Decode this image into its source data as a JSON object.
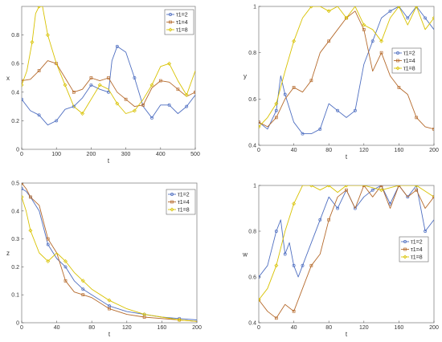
{
  "colors": {
    "blue": "#4F6FC1",
    "orange": "#B56A2C",
    "yellow": "#D8C200"
  },
  "chart_data": [
    {
      "type": "line",
      "xlabel": "t",
      "ylabel": "x",
      "xlim": [
        0,
        500
      ],
      "ylim": [
        0,
        1
      ],
      "xticks": [
        0,
        100,
        200,
        300,
        400,
        500
      ],
      "yticks": [
        0,
        0.2,
        0.4,
        0.6,
        0.8
      ],
      "xtick_labels": [
        "0",
        "100",
        "200",
        "300",
        "400",
        "500"
      ],
      "ytick_labels": [
        "0",
        "0.2",
        "0.4",
        "0.6",
        "0.8"
      ],
      "legend_position": "top-right",
      "grid": false,
      "series": [
        {
          "name": "τ1=2",
          "color": "#4F6FC1",
          "x": [
            0,
            25,
            50,
            75,
            100,
            125,
            150,
            175,
            200,
            225,
            250,
            260,
            275,
            300,
            325,
            350,
            375,
            400,
            425,
            450,
            475,
            500
          ],
          "y": [
            0.35,
            0.27,
            0.24,
            0.17,
            0.2,
            0.28,
            0.3,
            0.36,
            0.45,
            0.42,
            0.4,
            0.62,
            0.72,
            0.68,
            0.5,
            0.3,
            0.22,
            0.31,
            0.31,
            0.25,
            0.3,
            0.38
          ]
        },
        {
          "name": "τ1=4",
          "color": "#B56A2C",
          "x": [
            0,
            25,
            50,
            75,
            100,
            125,
            150,
            175,
            200,
            225,
            250,
            275,
            300,
            325,
            350,
            375,
            400,
            425,
            450,
            475,
            500
          ],
          "y": [
            0.48,
            0.49,
            0.55,
            0.62,
            0.6,
            0.5,
            0.4,
            0.42,
            0.5,
            0.48,
            0.5,
            0.4,
            0.35,
            0.3,
            0.31,
            0.43,
            0.48,
            0.47,
            0.42,
            0.37,
            0.4
          ]
        },
        {
          "name": "τ1=8",
          "color": "#D8C200",
          "x": [
            0,
            15,
            30,
            40,
            50,
            60,
            75,
            100,
            125,
            150,
            175,
            200,
            225,
            250,
            275,
            300,
            325,
            350,
            375,
            400,
            425,
            450,
            475,
            500
          ],
          "y": [
            0.45,
            0.55,
            0.75,
            0.95,
            1.0,
            1.0,
            0.8,
            0.6,
            0.45,
            0.3,
            0.25,
            0.35,
            0.45,
            0.42,
            0.32,
            0.25,
            0.27,
            0.35,
            0.45,
            0.58,
            0.6,
            0.48,
            0.38,
            0.55
          ]
        }
      ]
    },
    {
      "type": "line",
      "xlabel": "t",
      "ylabel": "y",
      "xlim": [
        0,
        200
      ],
      "ylim": [
        0.4,
        1
      ],
      "xticks": [
        0,
        40,
        80,
        120,
        160,
        200
      ],
      "yticks": [
        0.4,
        0.6,
        0.8,
        1
      ],
      "xtick_labels": [
        "0",
        "40",
        "80",
        "120",
        "160",
        "200"
      ],
      "ytick_labels": [
        "0.4",
        "0.6",
        "0.8",
        "1"
      ],
      "legend_position": "right",
      "grid": false,
      "series": [
        {
          "name": "τ1=2",
          "color": "#4F6FC1",
          "x": [
            0,
            10,
            20,
            25,
            30,
            40,
            50,
            60,
            70,
            80,
            90,
            100,
            110,
            120,
            130,
            140,
            150,
            160,
            170,
            180,
            190,
            200
          ],
          "y": [
            0.5,
            0.47,
            0.55,
            0.7,
            0.62,
            0.5,
            0.45,
            0.45,
            0.47,
            0.58,
            0.55,
            0.52,
            0.55,
            0.75,
            0.85,
            0.95,
            0.98,
            1.0,
            0.95,
            1.0,
            0.95,
            0.9
          ]
        },
        {
          "name": "τ1=4",
          "color": "#B56A2C",
          "x": [
            0,
            10,
            20,
            30,
            40,
            50,
            60,
            70,
            80,
            90,
            100,
            110,
            120,
            130,
            140,
            150,
            160,
            170,
            180,
            190,
            200
          ],
          "y": [
            0.5,
            0.48,
            0.52,
            0.6,
            0.65,
            0.63,
            0.68,
            0.8,
            0.85,
            0.9,
            0.95,
            0.98,
            0.9,
            0.72,
            0.8,
            0.7,
            0.65,
            0.62,
            0.52,
            0.48,
            0.47
          ]
        },
        {
          "name": "τ1=8",
          "color": "#D8C200",
          "x": [
            0,
            10,
            20,
            30,
            40,
            50,
            60,
            70,
            80,
            90,
            100,
            110,
            120,
            130,
            140,
            150,
            160,
            170,
            180,
            190,
            200
          ],
          "y": [
            0.48,
            0.52,
            0.58,
            0.72,
            0.85,
            0.95,
            1.0,
            1.0,
            0.98,
            1.0,
            0.95,
            1.0,
            0.92,
            0.9,
            0.85,
            0.95,
            1.0,
            0.92,
            1.0,
            0.9,
            0.95
          ]
        }
      ]
    },
    {
      "type": "line",
      "xlabel": "t",
      "ylabel": "z",
      "xlim": [
        0,
        200
      ],
      "ylim": [
        0,
        0.5
      ],
      "xticks": [
        0,
        40,
        80,
        120,
        160,
        200
      ],
      "yticks": [
        0,
        0.1,
        0.2,
        0.3,
        0.4,
        0.5
      ],
      "xtick_labels": [
        "0",
        "40",
        "80",
        "120",
        "160",
        "200"
      ],
      "ytick_labels": [
        "0",
        "0.1",
        "0.2",
        "0.3",
        "0.4",
        "0.5"
      ],
      "legend_position": "top-right",
      "grid": false,
      "series": [
        {
          "name": "τ1=2",
          "color": "#4F6FC1",
          "x": [
            0,
            5,
            10,
            20,
            30,
            40,
            50,
            60,
            70,
            80,
            100,
            120,
            140,
            160,
            180,
            200
          ],
          "y": [
            0.48,
            0.47,
            0.45,
            0.4,
            0.28,
            0.23,
            0.2,
            0.15,
            0.12,
            0.1,
            0.06,
            0.04,
            0.03,
            0.02,
            0.015,
            0.01
          ]
        },
        {
          "name": "τ1=4",
          "color": "#B56A2C",
          "x": [
            0,
            5,
            10,
            20,
            30,
            40,
            50,
            60,
            70,
            80,
            100,
            120,
            140,
            160,
            180,
            200
          ],
          "y": [
            0.5,
            0.48,
            0.45,
            0.42,
            0.3,
            0.25,
            0.15,
            0.11,
            0.1,
            0.09,
            0.05,
            0.03,
            0.02,
            0.015,
            0.01,
            0.005
          ]
        },
        {
          "name": "τ1=8",
          "color": "#D8C200",
          "x": [
            0,
            5,
            10,
            20,
            30,
            40,
            50,
            60,
            70,
            80,
            100,
            120,
            140,
            160,
            180,
            200
          ],
          "y": [
            0.45,
            0.4,
            0.33,
            0.25,
            0.22,
            0.25,
            0.22,
            0.18,
            0.15,
            0.12,
            0.08,
            0.05,
            0.03,
            0.02,
            0.01,
            0.005
          ]
        }
      ]
    },
    {
      "type": "line",
      "xlabel": "t",
      "ylabel": "w",
      "xlim": [
        0,
        200
      ],
      "ylim": [
        0.4,
        1
      ],
      "xticks": [
        0,
        40,
        80,
        120,
        160,
        200
      ],
      "yticks": [
        0.4,
        0.6,
        0.8,
        1
      ],
      "xtick_labels": [
        "0",
        "40",
        "80",
        "120",
        "160",
        "200"
      ],
      "ytick_labels": [
        "0.4",
        "0.6",
        "0.8",
        "1"
      ],
      "legend_position": "right",
      "grid": false,
      "series": [
        {
          "name": "τ1=2",
          "color": "#4F6FC1",
          "x": [
            0,
            10,
            20,
            25,
            30,
            35,
            40,
            45,
            50,
            60,
            70,
            80,
            90,
            100,
            110,
            120,
            130,
            140,
            150,
            160,
            170,
            180,
            190,
            200
          ],
          "y": [
            0.6,
            0.65,
            0.8,
            0.85,
            0.7,
            0.75,
            0.65,
            0.6,
            0.65,
            0.75,
            0.85,
            0.95,
            0.9,
            0.98,
            0.9,
            0.95,
            0.98,
            1.0,
            0.92,
            1.0,
            0.95,
            1.0,
            0.8,
            0.85
          ]
        },
        {
          "name": "τ1=4",
          "color": "#B56A2C",
          "x": [
            0,
            10,
            20,
            30,
            40,
            50,
            60,
            70,
            80,
            90,
            100,
            110,
            120,
            130,
            140,
            150,
            160,
            170,
            180,
            190,
            200
          ],
          "y": [
            0.5,
            0.45,
            0.42,
            0.48,
            0.45,
            0.55,
            0.65,
            0.7,
            0.85,
            0.95,
            0.98,
            0.9,
            1.0,
            0.95,
            1.0,
            0.9,
            1.0,
            0.95,
            0.98,
            0.9,
            0.95
          ]
        },
        {
          "name": "τ1=8",
          "color": "#D8C200",
          "x": [
            0,
            10,
            20,
            30,
            40,
            50,
            60,
            70,
            80,
            90,
            100,
            120,
            140,
            160,
            180,
            200
          ],
          "y": [
            0.5,
            0.55,
            0.65,
            0.8,
            0.92,
            1.0,
            1.0,
            0.98,
            1.0,
            0.97,
            1.0,
            1.0,
            0.98,
            1.0,
            1.0,
            0.95
          ]
        }
      ]
    }
  ]
}
